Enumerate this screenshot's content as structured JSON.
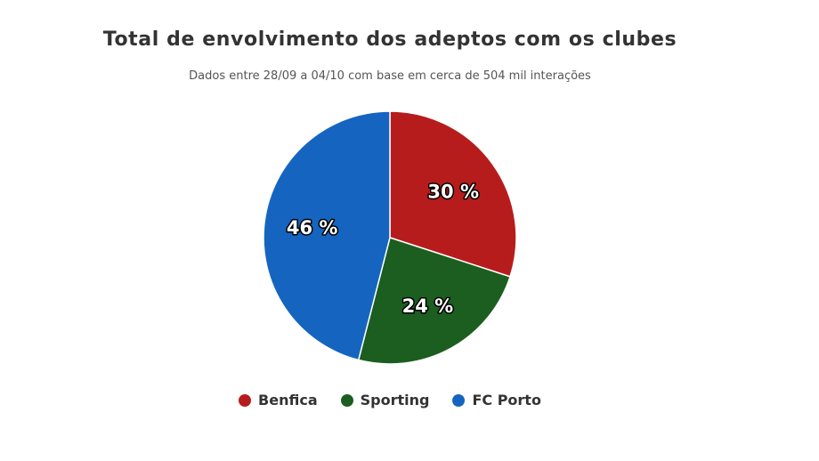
{
  "chart_data": {
    "type": "pie",
    "title": "Total de envolvimento dos adeptos com os clubes",
    "subtitle": "Dados entre 28/09 a 04/10 com base em cerca de 504 mil interações",
    "categories": [
      "Benfica",
      "Sporting",
      "FC Porto"
    ],
    "values": [
      30,
      24,
      46
    ],
    "labels": [
      "30 %",
      "24 %",
      "46 %"
    ],
    "colors": [
      "#b71c1c",
      "#1b5e20",
      "#1565c0"
    ],
    "legend_placement": "bottom"
  }
}
